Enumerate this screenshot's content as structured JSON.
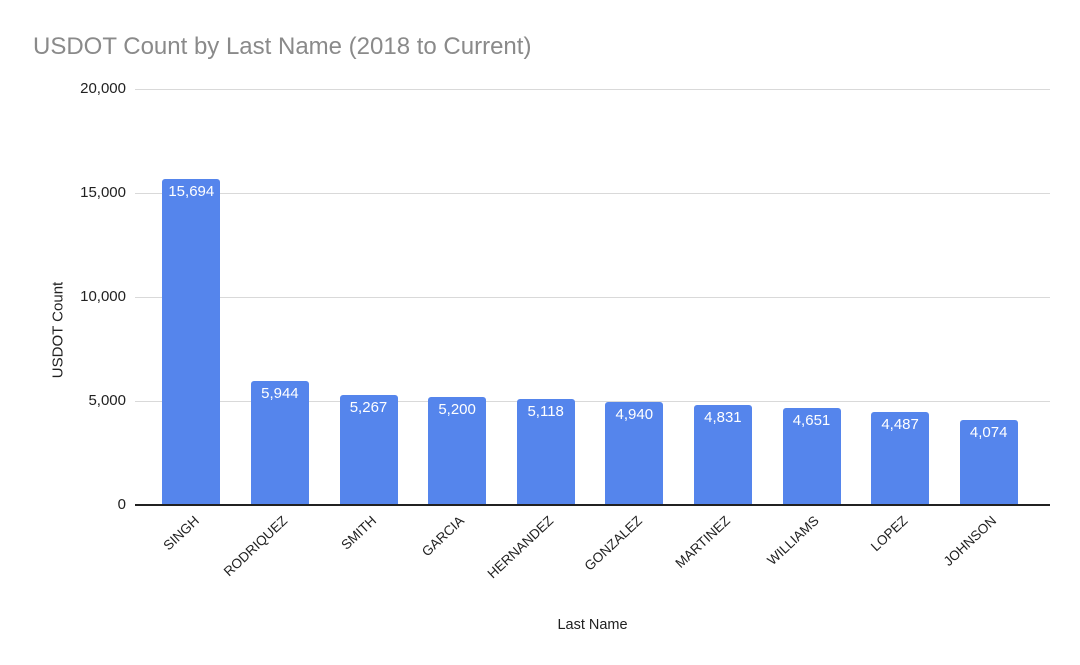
{
  "chart_data": {
    "type": "bar",
    "title": "USDOT Count by Last Name (2018 to Current)",
    "categories": [
      "SINGH",
      "RODRIQUEZ",
      "SMITH",
      "GARCIA",
      "HERNANDEZ",
      "GONZALEZ",
      "MARTINEZ",
      "WILLIAMS",
      "LOPEZ",
      "JOHNSON"
    ],
    "values": [
      15694,
      5944,
      5267,
      5200,
      5118,
      4940,
      4831,
      4651,
      4487,
      4074
    ],
    "value_labels": [
      "15,694",
      "5,944",
      "5,267",
      "5,200",
      "5,118",
      "4,940",
      "4,831",
      "4,651",
      "4,487",
      "4,074"
    ],
    "xlabel": "Last Name",
    "ylabel": "USDOT Count",
    "ylim": [
      0,
      20000
    ],
    "yticks": [
      0,
      5000,
      10000,
      15000,
      20000
    ],
    "ytick_labels": [
      "0",
      "5,000",
      "10,000",
      "15,000",
      "20,000"
    ],
    "grid": true,
    "legend": "none",
    "colors": {
      "bar": "#5585EC",
      "bar_value_label": "#ffffff",
      "title": "#8a8a8a",
      "gridline": "#d9d9d9",
      "axis_line": "#212121",
      "tick_label": "#212121",
      "background": "#ffffff"
    }
  }
}
